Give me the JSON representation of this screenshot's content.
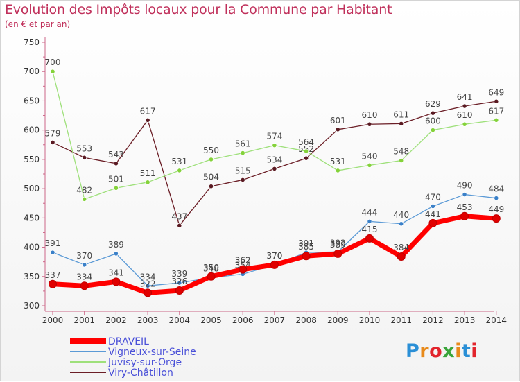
{
  "title": "Evolution des Impôts locaux pour la Commune par Habitant",
  "subtitle": "(en € et par an)",
  "logo": {
    "letters": [
      "P",
      "r",
      "o",
      "x",
      "i",
      "t",
      "i"
    ],
    "colors": [
      "#2a8fd6",
      "#e88a1a",
      "#e2242c",
      "#3aa53a",
      "#e88a1a",
      "#2a8fd6",
      "#e2242c"
    ]
  },
  "chart_data": {
    "type": "line",
    "title": "Evolution des Impôts locaux pour la Commune par Habitant",
    "xlabel": "",
    "ylabel": "",
    "ylim": [
      300,
      750
    ],
    "yticks": [
      300,
      350,
      400,
      450,
      500,
      550,
      600,
      650,
      700,
      750
    ],
    "x": [
      "2000",
      "2001",
      "2002",
      "2003",
      "2004",
      "2005",
      "2006",
      "2007",
      "2008",
      "2009",
      "2010",
      "2011",
      "2012",
      "2013",
      "2014"
    ],
    "grid": false,
    "legend": "bottom-left",
    "series": [
      {
        "name": "Viry-Châtillon",
        "color": "#6b1e26",
        "marker": "#5a1a22",
        "width": 1.3,
        "values": [
          579,
          553,
          543,
          617,
          437,
          504,
          515,
          534,
          552,
          601,
          610,
          611,
          629,
          641,
          649
        ],
        "labels": [
          "579",
          "553",
          "543",
          "617",
          "437",
          "504",
          "515",
          "534",
          "552",
          "601",
          "610",
          "611",
          "629",
          "641",
          "649"
        ]
      },
      {
        "name": "Juvisy-sur-Orge",
        "color": "#9ee07a",
        "marker": "#84d23a",
        "width": 1.3,
        "values": [
          700,
          482,
          501,
          511,
          531,
          550,
          561,
          574,
          564,
          531,
          540,
          548,
          600,
          610,
          617
        ],
        "labels": [
          "700",
          "482",
          "501",
          "511",
          "531",
          "550",
          "561",
          "574",
          "564",
          "531",
          "540",
          "548",
          "600",
          "610",
          "617"
        ]
      },
      {
        "name": "Vigneux-sur-Seine",
        "color": "#5b9ad6",
        "marker": "#3a80c8",
        "width": 1.3,
        "values": [
          391,
          370,
          389,
          334,
          339,
          348,
          354,
          370,
          391,
          392,
          444,
          440,
          470,
          490,
          484
        ],
        "labels": [
          "391",
          "370",
          "389",
          "334",
          "339",
          "348",
          "354",
          "370",
          "391",
          "392",
          "444",
          "440",
          "470",
          "490",
          "484"
        ]
      },
      {
        "name": "DRAVEIL",
        "color": "#ff0000",
        "marker": "#e00000",
        "width": 7,
        "values": [
          337,
          334,
          341,
          322,
          326,
          350,
          362,
          370,
          385,
          389,
          415,
          384,
          441,
          453,
          449
        ],
        "labels": [
          "337",
          "334",
          "341",
          "322",
          "326",
          "350",
          "362",
          "370",
          "385",
          "389",
          "415",
          "384",
          "441",
          "453",
          "449"
        ]
      }
    ],
    "legend_order": [
      "DRAVEIL",
      "Vigneux-sur-Seine",
      "Juvisy-sur-Orge",
      "Viry-Châtillon"
    ],
    "legend_text_color": "#4a50d8"
  }
}
